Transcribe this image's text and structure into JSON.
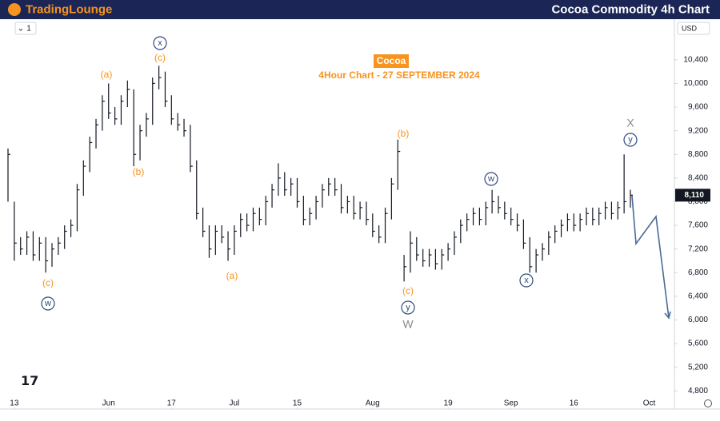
{
  "header": {
    "brand": "TradingLounge",
    "title": "Cocoa Commodity 4h Chart"
  },
  "chart_data": {
    "type": "ohlc",
    "title": "Cocoa",
    "subtitle": "4Hour Chart - 27 SEPTEMBER 2024",
    "interval": "1",
    "currency": "USD",
    "color": "#131722",
    "x": [
      -1,
      0,
      1,
      2,
      3,
      4,
      5,
      6,
      7,
      8,
      9,
      10,
      11,
      12,
      13,
      14,
      15,
      16,
      17,
      18,
      19,
      20,
      21,
      22,
      23,
      24,
      25,
      26,
      27,
      28,
      29,
      30,
      31,
      32,
      33,
      34,
      35,
      36,
      37,
      38,
      39,
      40,
      41,
      42,
      43,
      44,
      45,
      46,
      47,
      48,
      49,
      50,
      51,
      52,
      53,
      54,
      55,
      56,
      57,
      58,
      59,
      60,
      61,
      62,
      63,
      64,
      65,
      66,
      67,
      68,
      69,
      70,
      71,
      72,
      73,
      74,
      75,
      76,
      77,
      78,
      79,
      80,
      81,
      82,
      83,
      84,
      85,
      86,
      87,
      88,
      89,
      90,
      91,
      92,
      93,
      94,
      95,
      96,
      97,
      98
    ],
    "high": [
      8900,
      8000,
      7400,
      7500,
      7500,
      7400,
      7400,
      7300,
      7400,
      7600,
      7700,
      8300,
      8700,
      9100,
      9400,
      9800,
      10000,
      9600,
      9800,
      10050,
      9900,
      9300,
      9500,
      10100,
      10300,
      10200,
      9800,
      9500,
      9400,
      9300,
      8700,
      7900,
      7600,
      7600,
      7600,
      7500,
      7600,
      7800,
      7800,
      7900,
      7900,
      8100,
      8300,
      8650,
      8500,
      8400,
      8400,
      8100,
      7900,
      8100,
      8300,
      8400,
      8400,
      8300,
      8100,
      8100,
      8000,
      8000,
      7800,
      7600,
      7900,
      8400,
      9050,
      7100,
      7500,
      7400,
      7200,
      7200,
      7200,
      7200,
      7300,
      7500,
      7700,
      7800,
      7900,
      7900,
      8000,
      8200,
      8100,
      8000,
      7900,
      7800,
      7700,
      7400,
      7200,
      7300,
      7500,
      7600,
      7700,
      7800,
      7800,
      7800,
      7900,
      7900,
      7900,
      8000,
      8000,
      8000,
      8800,
      8200
    ],
    "low": [
      8000,
      7000,
      7100,
      7100,
      7000,
      7000,
      6800,
      6900,
      7100,
      7200,
      7400,
      7500,
      8100,
      8500,
      8900,
      9200,
      9400,
      9300,
      9300,
      9600,
      8600,
      8700,
      9100,
      9300,
      9900,
      9600,
      9300,
      9200,
      9100,
      8500,
      7700,
      7400,
      7050,
      7100,
      7300,
      7000,
      7100,
      7400,
      7500,
      7500,
      7600,
      7600,
      7900,
      8100,
      8100,
      8100,
      7900,
      7600,
      7600,
      7700,
      7900,
      8100,
      8100,
      7800,
      7800,
      7700,
      7700,
      7600,
      7400,
      7300,
      7300,
      7700,
      8200,
      6650,
      6800,
      7000,
      6900,
      6900,
      6850,
      6850,
      7000,
      7100,
      7300,
      7500,
      7600,
      7600,
      7600,
      7800,
      7800,
      7700,
      7600,
      7500,
      7200,
      6800,
      6800,
      7000,
      7100,
      7300,
      7400,
      7500,
      7500,
      7500,
      7600,
      7600,
      7600,
      7700,
      7700,
      7700,
      7800,
      7900
    ],
    "close": [
      8800,
      7300,
      7200,
      7400,
      7100,
      7300,
      7000,
      7200,
      7300,
      7500,
      7600,
      8200,
      8600,
      9000,
      9300,
      9700,
      9500,
      9400,
      9700,
      9900,
      8800,
      9200,
      9400,
      10000,
      10100,
      9700,
      9400,
      9300,
      9200,
      8600,
      7800,
      7500,
      7200,
      7500,
      7400,
      7200,
      7500,
      7700,
      7600,
      7800,
      7700,
      8000,
      8200,
      8400,
      8200,
      8300,
      8000,
      7700,
      7800,
      8000,
      8200,
      8300,
      8200,
      7900,
      8000,
      7800,
      7900,
      7700,
      7500,
      7400,
      7800,
      8300,
      8850,
      6900,
      7300,
      7100,
      7000,
      7100,
      6950,
      7100,
      7200,
      7400,
      7600,
      7700,
      7800,
      7700,
      7900,
      8000,
      7900,
      7800,
      7700,
      7600,
      7300,
      6900,
      7100,
      7200,
      7400,
      7500,
      7600,
      7700,
      7600,
      7700,
      7800,
      7700,
      7800,
      7900,
      7800,
      7900,
      8000,
      8110
    ],
    "last_price": {
      "value": 8110,
      "label": "8,110"
    },
    "xlim": [
      -1,
      105
    ],
    "ylim": [
      4520,
      11060
    ],
    "xticks": [
      {
        "value": 0,
        "label": "13"
      },
      {
        "value": 15,
        "label": "Jun"
      },
      {
        "value": 25,
        "label": "17"
      },
      {
        "value": 35,
        "label": "Jul"
      },
      {
        "value": 45,
        "label": "15"
      },
      {
        "value": 57,
        "label": "Aug"
      },
      {
        "value": 69,
        "label": "19"
      },
      {
        "value": 79,
        "label": "Sep"
      },
      {
        "value": 89,
        "label": "16"
      },
      {
        "value": 101,
        "label": "Oct"
      }
    ],
    "yticks": [
      {
        "value": 4800,
        "label": "4,800"
      },
      {
        "value": 5200,
        "label": "5,200"
      },
      {
        "value": 5600,
        "label": "5,600"
      },
      {
        "value": 6000,
        "label": "6,000"
      },
      {
        "value": 6400,
        "label": "6,400"
      },
      {
        "value": 6800,
        "label": "6,800"
      },
      {
        "value": 7200,
        "label": "7,200"
      },
      {
        "value": 7600,
        "label": "7,600"
      },
      {
        "value": 8000,
        "label": "8,000"
      },
      {
        "value": 8400,
        "label": "8,400"
      },
      {
        "value": 8800,
        "label": "8,800"
      },
      {
        "value": 9200,
        "label": "9,200"
      },
      {
        "value": 9600,
        "label": "9,600"
      },
      {
        "value": 10000,
        "label": "10,000"
      },
      {
        "value": 10400,
        "label": "10,400"
      }
    ],
    "annotations": [
      {
        "text": "(a)",
        "style": "orange"
      },
      {
        "text": "(c)",
        "style": "orange"
      },
      {
        "text": "x",
        "style": "circle"
      },
      {
        "text": "(b)",
        "style": "orange"
      },
      {
        "text": "(c)",
        "style": "orange"
      },
      {
        "text": "w",
        "style": "circle"
      },
      {
        "text": "(a)",
        "style": "orange"
      },
      {
        "text": "(b)",
        "style": "orange"
      },
      {
        "text": "(c)",
        "style": "orange"
      },
      {
        "text": "y",
        "style": "circle"
      },
      {
        "text": "W",
        "style": "gray"
      },
      {
        "text": "w",
        "style": "circle"
      },
      {
        "text": "x",
        "style": "circle"
      },
      {
        "text": "X",
        "style": "gray"
      },
      {
        "text": "y",
        "style": "circle"
      }
    ]
  }
}
